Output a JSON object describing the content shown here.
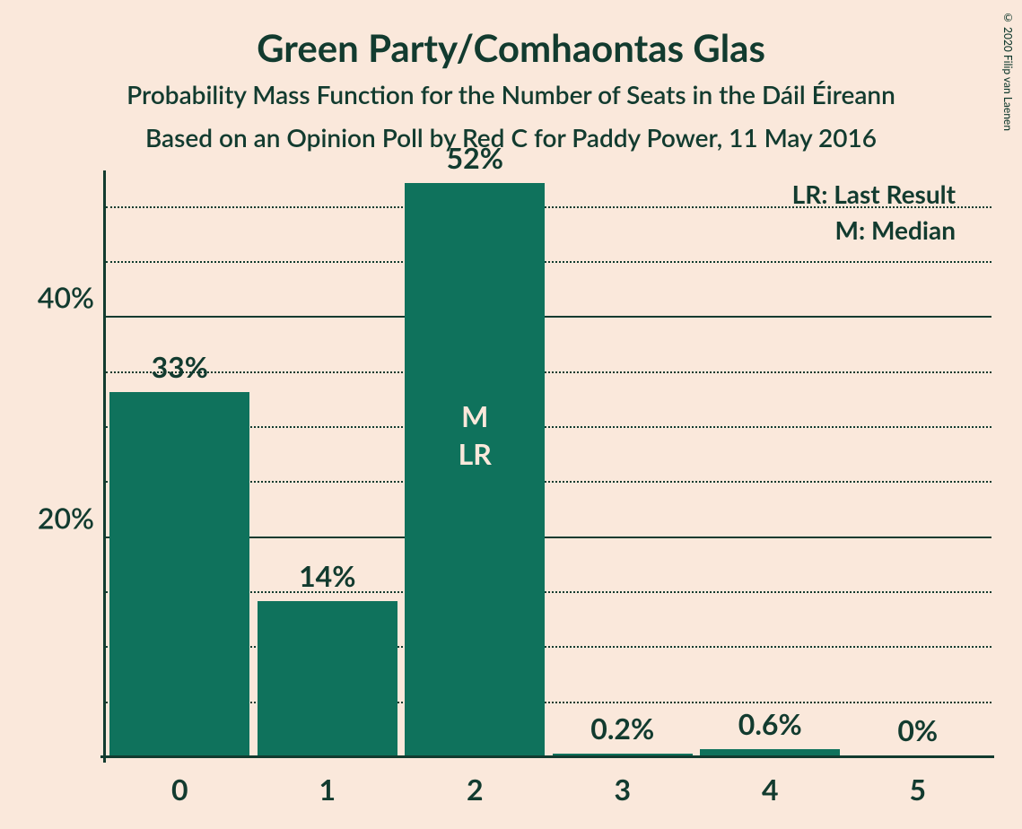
{
  "title": "Green Party/Comhaontas Glas",
  "title_fontsize": 42,
  "subtitle1": "Probability Mass Function for the Number of Seats in the Dáil Éireann",
  "subtitle2": "Based on an Opinion Poll by Red C for Paddy Power, 11 May 2016",
  "subtitle_fontsize": 28,
  "copyright": "© 2020 Filip van Laenen",
  "legend": {
    "lr": "LR: Last Result",
    "m": "M: Median"
  },
  "chart": {
    "type": "bar",
    "background_color": "#fae8db",
    "bar_color": "#0f725c",
    "text_color": "#123b2f",
    "annotation_color": "#fae8db",
    "categories": [
      "0",
      "1",
      "2",
      "3",
      "4",
      "5"
    ],
    "values": [
      33,
      14,
      52,
      0.2,
      0.6,
      0
    ],
    "value_labels": [
      "33%",
      "14%",
      "52%",
      "0.2%",
      "0.6%",
      "0%"
    ],
    "y_ticks_major": [
      20,
      40
    ],
    "y_ticks_major_labels": [
      "20%",
      "40%"
    ],
    "y_ticks_minor": [
      5,
      10,
      15,
      25,
      30,
      35,
      45,
      50
    ],
    "ylim": [
      0,
      53
    ],
    "bar_width_ratio": 0.95,
    "median_index": 2,
    "last_result_index": 2,
    "annotation_m": "M",
    "annotation_lr": "LR"
  }
}
